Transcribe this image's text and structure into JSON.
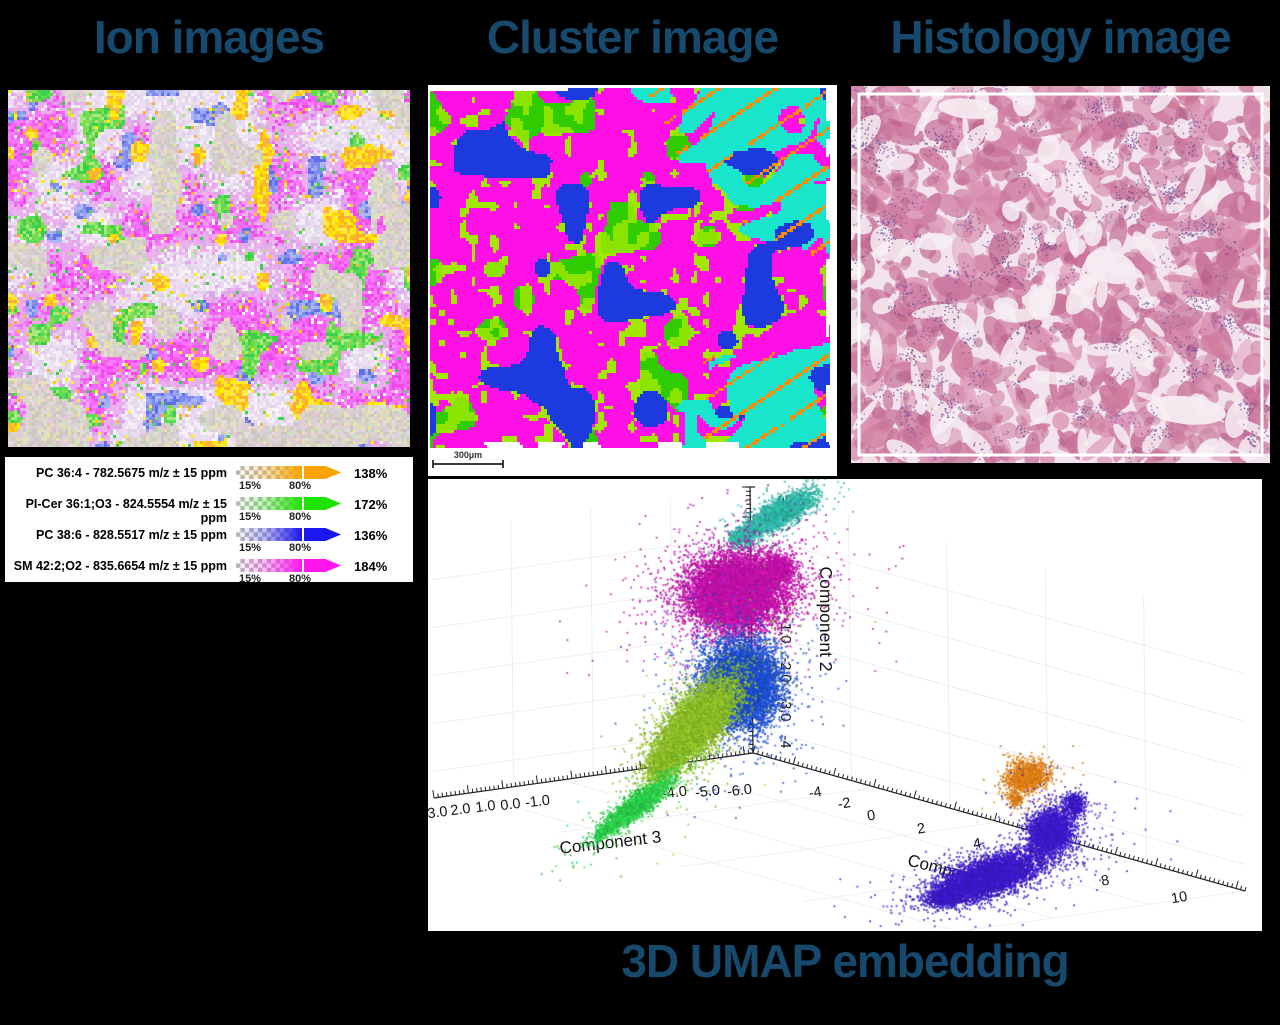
{
  "figure": {
    "background": "#000000",
    "title_color": "#17496d"
  },
  "panels": {
    "ion": {
      "title": "Ion images"
    },
    "cluster": {
      "title": "Cluster image",
      "scale_bar": "300µm"
    },
    "histology": {
      "title": "Histology image"
    },
    "umap": {
      "title": "3D UMAP embedding"
    }
  },
  "legend": {
    "low_label": "15%",
    "high_label": "80%",
    "rows": [
      {
        "label": "PC 36:4 - 782.5675 m/z ± 15 ppm",
        "max": "138%",
        "color": "#f9a400"
      },
      {
        "label": "PI-Cer 36:1;O3 - 824.5554 m/z ± 15 ppm",
        "max": "172%",
        "color": "#1ee400"
      },
      {
        "label": "PC 38:6 - 828.5517 m/z ± 15 ppm",
        "max": "136%",
        "color": "#1b17ee"
      },
      {
        "label": "SM 42:2;O2 - 835.6654 m/z ± 15 ppm",
        "max": "184%",
        "color": "#ff16ee"
      }
    ]
  },
  "image_palettes": {
    "ion_image": [
      "#f55ff5",
      "#eda5ef",
      "#efd8f2",
      "#ffee00",
      "#f6b73c",
      "#58dd55",
      "#7f8cef",
      "#d8d3d0"
    ],
    "cluster_image": [
      "#ff10e6",
      "#1d3ade",
      "#2ecc00",
      "#a0e800",
      "#18e6cc",
      "#ff8c00",
      "#ffffff"
    ],
    "histology_image": [
      "#f2e3ec",
      "#d586aa",
      "#c97c9e",
      "#7a58a0",
      "#ffffff"
    ]
  },
  "chart_data": {
    "type": "scatter",
    "projection": "3d",
    "title": "3D UMAP embedding",
    "grid": true,
    "axes": {
      "component1": {
        "label": "Component 1",
        "ticks": [
          "-4",
          "-2",
          "0",
          "2",
          "4",
          "6",
          "8",
          "10"
        ],
        "range": [
          -5,
          11
        ]
      },
      "component2": {
        "label": "Component 2",
        "ticks": [
          "3",
          "-1.0",
          "-2.0",
          "-3.0",
          "-4"
        ],
        "range": [
          -5,
          3.5
        ]
      },
      "component3": {
        "label": "Component 3",
        "ticks": [
          "3.0",
          "2.0",
          "1.0",
          "0.0",
          "-1.0",
          "-3.0",
          "-4.0",
          "-5.0",
          "-6.0"
        ],
        "range": [
          3.5,
          -6.5
        ]
      }
    },
    "clusters": [
      {
        "name": "teal",
        "color": "#2db3a3",
        "approx_center": {
          "component1": -4,
          "component2": 3.2,
          "component3": -1
        }
      },
      {
        "name": "magenta",
        "color": "#bf11a6",
        "approx_center": {
          "component1": -4,
          "component2": 0.5,
          "component3": -1
        }
      },
      {
        "name": "blue",
        "color": "#1c4ccd",
        "approx_center": {
          "component1": -3.5,
          "component2": -2,
          "component3": -0.5
        }
      },
      {
        "name": "yellow-green",
        "color": "#8aba26",
        "approx_center": {
          "component1": -3.5,
          "component2": -3.5,
          "component3": 0.5
        }
      },
      {
        "name": "green",
        "color": "#2bcb49",
        "approx_center": {
          "component1": -3,
          "component2": -4.8,
          "component3": 2
        }
      },
      {
        "name": "orange",
        "color": "#d87b15",
        "approx_center": {
          "component1": 5,
          "component2": -3.5,
          "component3": -3
        }
      },
      {
        "name": "indigo",
        "color": "#3a1ac6",
        "approx_center": {
          "component1": 6,
          "component2": -4.8,
          "component3": -2
        }
      }
    ]
  }
}
